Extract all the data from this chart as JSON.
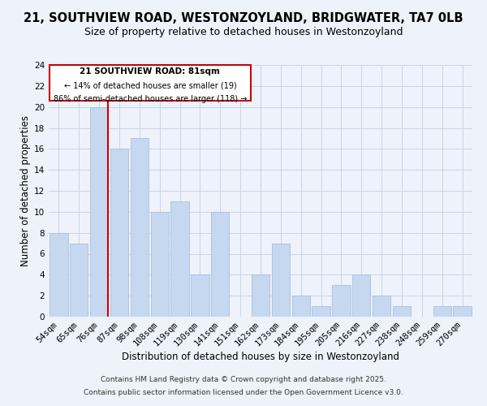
{
  "title": "21, SOUTHVIEW ROAD, WESTONZOYLAND, BRIDGWATER, TA7 0LB",
  "subtitle": "Size of property relative to detached houses in Westonzoyland",
  "xlabel": "Distribution of detached houses by size in Westonzoyland",
  "ylabel": "Number of detached properties",
  "categories": [
    "54sqm",
    "65sqm",
    "76sqm",
    "87sqm",
    "98sqm",
    "108sqm",
    "119sqm",
    "130sqm",
    "141sqm",
    "151sqm",
    "162sqm",
    "173sqm",
    "184sqm",
    "195sqm",
    "205sqm",
    "216sqm",
    "227sqm",
    "238sqm",
    "248sqm",
    "259sqm",
    "270sqm"
  ],
  "values": [
    8,
    7,
    20,
    16,
    17,
    10,
    11,
    4,
    10,
    0,
    4,
    7,
    2,
    1,
    3,
    4,
    2,
    1,
    0,
    1,
    1
  ],
  "bar_color": "#c5d8f0",
  "bar_edge_color": "#a8c0de",
  "grid_color": "#c8d4e8",
  "background_color": "#eef2fa",
  "marker_line_color": "#cc0000",
  "annotation_title": "21 SOUTHVIEW ROAD: 81sqm",
  "annotation_line1": "← 14% of detached houses are smaller (19)",
  "annotation_line2": "86% of semi-detached houses are larger (118) →",
  "annotation_box_color": "#ffffff",
  "annotation_border_color": "#cc0000",
  "ylim": [
    0,
    24
  ],
  "yticks": [
    0,
    2,
    4,
    6,
    8,
    10,
    12,
    14,
    16,
    18,
    20,
    22,
    24
  ],
  "footer1": "Contains HM Land Registry data © Crown copyright and database right 2025.",
  "footer2": "Contains public sector information licensed under the Open Government Licence v3.0.",
  "title_fontsize": 10.5,
  "subtitle_fontsize": 9,
  "xlabel_fontsize": 8.5,
  "ylabel_fontsize": 8.5,
  "tick_fontsize": 7.5,
  "footer_fontsize": 6.5
}
